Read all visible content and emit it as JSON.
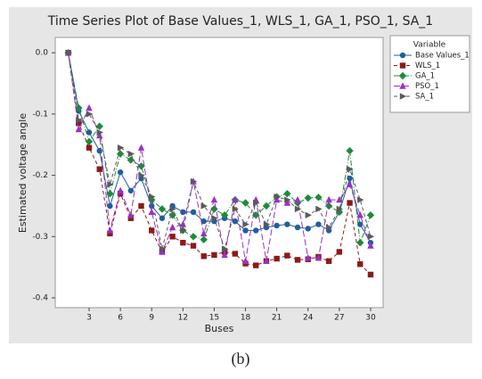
{
  "chart_data": {
    "type": "line",
    "title": "Time Series Plot of Base Values_1, WLS_1, GA_1, PSO_1, SA_1",
    "xlabel": "Buses",
    "ylabel": "Estimated voltage angle",
    "legend_title": "Variable",
    "legend": "right",
    "caption": "(b)",
    "x": [
      1,
      2,
      3,
      4,
      5,
      6,
      7,
      8,
      9,
      10,
      11,
      12,
      13,
      14,
      15,
      16,
      17,
      18,
      19,
      20,
      21,
      22,
      23,
      24,
      25,
      26,
      27,
      28,
      29,
      30
    ],
    "xlim": [
      -0.25,
      31.2
    ],
    "xticks": [
      3,
      6,
      9,
      12,
      15,
      18,
      21,
      24,
      27,
      30
    ],
    "ylim": [
      -0.416,
      0.025
    ],
    "yticks": [
      {
        "value": 0,
        "label": "0.0"
      },
      -0.1,
      -0.2,
      -0.3,
      -0.4
    ],
    "series": [
      {
        "name": "Base Values_1",
        "color": "#1f5f9e",
        "line_style": "solid",
        "marker": "circle",
        "values": [
          0,
          -0.095,
          -0.13,
          -0.16,
          -0.25,
          -0.195,
          -0.225,
          -0.205,
          -0.25,
          -0.27,
          -0.25,
          -0.26,
          -0.26,
          -0.275,
          -0.275,
          -0.27,
          -0.275,
          -0.29,
          -0.29,
          -0.285,
          -0.282,
          -0.28,
          -0.285,
          -0.287,
          -0.28,
          -0.29,
          -0.26,
          -0.205,
          -0.28,
          -0.31
        ]
      },
      {
        "name": "WLS_1",
        "color": "#8b1a1a",
        "line_style": "dashed",
        "marker": "square",
        "values": [
          0,
          -0.115,
          -0.155,
          -0.19,
          -0.295,
          -0.23,
          -0.27,
          -0.25,
          -0.29,
          -0.325,
          -0.3,
          -0.31,
          -0.315,
          -0.332,
          -0.33,
          -0.325,
          -0.328,
          -0.344,
          -0.347,
          -0.34,
          -0.336,
          -0.331,
          -0.338,
          -0.337,
          -0.333,
          -0.34,
          -0.325,
          -0.245,
          -0.345,
          -0.362
        ]
      },
      {
        "name": "GA_1",
        "color": "#1f8a3a",
        "line_style": "dashdot",
        "marker": "diamond",
        "values": [
          0,
          -0.09,
          -0.145,
          -0.12,
          -0.23,
          -0.165,
          -0.175,
          -0.185,
          -0.24,
          -0.255,
          -0.265,
          -0.29,
          -0.3,
          -0.305,
          -0.255,
          -0.265,
          -0.24,
          -0.245,
          -0.265,
          -0.25,
          -0.235,
          -0.23,
          -0.245,
          -0.237,
          -0.236,
          -0.25,
          -0.26,
          -0.16,
          -0.31,
          -0.265
        ]
      },
      {
        "name": "PSO_1",
        "color": "#9b2fc9",
        "line_style": "longdash",
        "marker": "triangle",
        "values": [
          0,
          -0.125,
          -0.09,
          -0.135,
          -0.29,
          -0.225,
          -0.265,
          -0.155,
          -0.26,
          -0.325,
          -0.285,
          -0.28,
          -0.21,
          -0.295,
          -0.24,
          -0.33,
          -0.24,
          -0.34,
          -0.24,
          -0.34,
          -0.24,
          -0.245,
          -0.24,
          -0.335,
          -0.335,
          -0.24,
          -0.24,
          -0.215,
          -0.265,
          -0.315
        ]
      },
      {
        "name": "SA_1",
        "color": "#5a5a5a",
        "line_style": "dashed",
        "marker": "triangle-right",
        "values": [
          0,
          -0.11,
          -0.1,
          -0.13,
          -0.215,
          -0.155,
          -0.165,
          -0.2,
          -0.235,
          -0.32,
          -0.255,
          -0.29,
          -0.21,
          -0.25,
          -0.27,
          -0.32,
          -0.255,
          -0.28,
          -0.245,
          -0.28,
          -0.235,
          -0.24,
          -0.255,
          -0.265,
          -0.255,
          -0.285,
          -0.255,
          -0.19,
          -0.24,
          -0.3
        ]
      }
    ]
  }
}
